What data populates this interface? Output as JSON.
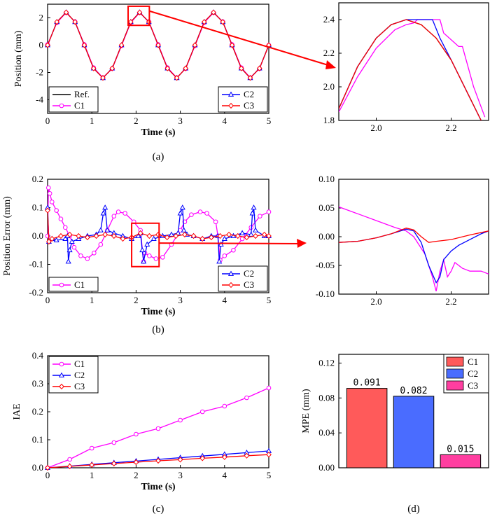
{
  "chart_data": [
    {
      "type": "line",
      "id": "a_main",
      "caption": "(a)",
      "xlabel": "Time (s)",
      "ylabel": "Position (mm)",
      "xlim": [
        0,
        5
      ],
      "ylim": [
        -5,
        3
      ],
      "xticks": [
        0,
        1,
        2,
        3,
        4,
        5
      ],
      "yticks": [
        -4,
        -2,
        0,
        2
      ],
      "legend": {
        "left": [
          "Ref.",
          "C1"
        ],
        "right": [
          "C2",
          "C3"
        ]
      },
      "legend_placement": "bottom-left and bottom-right",
      "series": [
        {
          "name": "Ref.",
          "color": "#000000",
          "marker": "none",
          "x": [
            0,
            0.21,
            0.42,
            0.62,
            0.83,
            1.04,
            1.25,
            1.46,
            1.67,
            1.88,
            2.08,
            2.29,
            2.5,
            2.71,
            2.92,
            3.12,
            3.33,
            3.54,
            3.75,
            3.96,
            4.17,
            4.38,
            4.58,
            4.79,
            5.0
          ],
          "y": [
            0,
            1.7,
            2.4,
            1.7,
            0,
            -1.7,
            -2.4,
            -1.7,
            0,
            1.7,
            2.4,
            1.7,
            0,
            -1.7,
            -2.4,
            -1.7,
            0,
            1.7,
            2.4,
            1.7,
            0,
            -1.7,
            -2.4,
            -1.7,
            0
          ]
        },
        {
          "name": "C1",
          "color": "#ff00ff",
          "marker": "circle",
          "x": [
            0,
            0.21,
            0.42,
            0.62,
            0.83,
            1.04,
            1.25,
            1.46,
            1.67,
            1.88,
            2.08,
            2.29,
            2.5,
            2.71,
            2.92,
            3.12,
            3.33,
            3.54,
            3.75,
            3.96,
            4.17,
            4.38,
            4.58,
            4.79,
            5.0
          ],
          "y": [
            0.05,
            1.65,
            2.38,
            1.72,
            0.05,
            -1.65,
            -2.38,
            -1.72,
            -0.05,
            1.65,
            2.38,
            1.72,
            0.05,
            -1.65,
            -2.38,
            -1.72,
            -0.05,
            1.65,
            2.38,
            1.72,
            0.05,
            -1.65,
            -2.38,
            -1.72,
            0
          ]
        },
        {
          "name": "C2",
          "color": "#0000ff",
          "marker": "triangle",
          "x": [
            0,
            0.21,
            0.42,
            0.62,
            0.83,
            1.04,
            1.25,
            1.46,
            1.67,
            1.88,
            2.08,
            2.29,
            2.5,
            2.71,
            2.92,
            3.12,
            3.33,
            3.54,
            3.75,
            3.96,
            4.17,
            4.38,
            4.58,
            4.79,
            5.0
          ],
          "y": [
            0,
            1.7,
            2.4,
            1.7,
            0,
            -1.7,
            -2.4,
            -1.7,
            0,
            1.7,
            2.4,
            1.7,
            0,
            -1.7,
            -2.4,
            -1.7,
            0,
            1.7,
            2.4,
            1.7,
            0,
            -1.7,
            -2.4,
            -1.7,
            0
          ]
        },
        {
          "name": "C3",
          "color": "#ff0000",
          "marker": "diamond",
          "x": [
            0,
            0.21,
            0.42,
            0.62,
            0.83,
            1.04,
            1.25,
            1.46,
            1.67,
            1.88,
            2.08,
            2.29,
            2.5,
            2.71,
            2.92,
            3.12,
            3.33,
            3.54,
            3.75,
            3.96,
            4.17,
            4.38,
            4.58,
            4.79,
            5.0
          ],
          "y": [
            0,
            1.7,
            2.4,
            1.7,
            0,
            -1.7,
            -2.4,
            -1.7,
            0,
            1.7,
            2.4,
            1.7,
            0,
            -1.7,
            -2.4,
            -1.7,
            0,
            1.7,
            2.4,
            1.7,
            0,
            -1.7,
            -2.4,
            -1.7,
            0
          ]
        }
      ]
    },
    {
      "type": "line",
      "id": "a_zoom",
      "xlim": [
        1.9,
        2.3
      ],
      "ylim": [
        1.8,
        2.5
      ],
      "xticks": [
        2.0,
        2.2
      ],
      "xtick_labels": [
        "2.0",
        "2.2"
      ],
      "yticks": [
        1.8,
        2.0,
        2.2,
        2.4
      ],
      "ytick_labels": [
        "1.8",
        "2.0",
        "2.2",
        "2.4"
      ],
      "series": [
        {
          "name": "Ref.",
          "color": "#000000",
          "x": [
            1.9,
            1.95,
            2.0,
            2.04,
            2.08,
            2.12,
            2.16,
            2.2,
            2.24,
            2.28
          ],
          "y": [
            1.87,
            2.12,
            2.29,
            2.37,
            2.4,
            2.37,
            2.29,
            2.16,
            1.98,
            1.8
          ]
        },
        {
          "name": "C1",
          "color": "#ff00ff",
          "x": [
            1.9,
            1.95,
            2.0,
            2.05,
            2.08,
            2.1,
            2.11,
            2.17,
            2.18,
            2.22,
            2.23,
            2.26,
            2.29
          ],
          "y": [
            1.85,
            2.06,
            2.23,
            2.34,
            2.37,
            2.38,
            2.4,
            2.4,
            2.32,
            2.24,
            2.24,
            2.0,
            1.82
          ]
        },
        {
          "name": "C2",
          "color": "#0000ff",
          "x": [
            1.9,
            1.95,
            2.0,
            2.04,
            2.08,
            2.1,
            2.15,
            2.17,
            2.2,
            2.24,
            2.28
          ],
          "y": [
            1.87,
            2.12,
            2.29,
            2.37,
            2.4,
            2.4,
            2.4,
            2.29,
            2.16,
            1.98,
            1.8
          ]
        },
        {
          "name": "C3",
          "color": "#ff0000",
          "x": [
            1.9,
            1.95,
            2.0,
            2.04,
            2.08,
            2.12,
            2.16,
            2.2,
            2.24,
            2.28
          ],
          "y": [
            1.87,
            2.12,
            2.29,
            2.37,
            2.4,
            2.37,
            2.29,
            2.16,
            1.98,
            1.8
          ]
        }
      ]
    },
    {
      "type": "line",
      "id": "b_main",
      "caption": "(b)",
      "xlabel": "Time (s)",
      "ylabel": "Position Error (mm)",
      "xlim": [
        0,
        5
      ],
      "ylim": [
        -0.2,
        0.2
      ],
      "xticks": [
        0,
        1,
        2,
        3,
        4,
        5
      ],
      "yticks": [
        -0.2,
        -0.1,
        0.0,
        0.1,
        0.2
      ],
      "ytick_labels": [
        "-0.2",
        "-0.1",
        "0.0",
        "0.1",
        "0.2"
      ],
      "legend": {
        "left": [
          "C1"
        ],
        "right": [
          "C2",
          "C3"
        ]
      },
      "legend_placement": "bottom-left and bottom-right",
      "series": [
        {
          "name": "C1",
          "color": "#ff00ff",
          "marker": "circle",
          "x": [
            0,
            0.02,
            0.05,
            0.1,
            0.2,
            0.3,
            0.4,
            0.5,
            0.6,
            0.75,
            0.9,
            1.05,
            1.2,
            1.35,
            1.5,
            1.6,
            1.75,
            1.95,
            2.1,
            2.17,
            2.2,
            2.3,
            2.45,
            2.6,
            2.8,
            3.0,
            3.1,
            3.25,
            3.45,
            3.6,
            3.8,
            3.85,
            3.9,
            4.0,
            4.2,
            4.4,
            4.6,
            4.8,
            5.0
          ],
          "y": [
            0.0,
            0.17,
            0.15,
            0.12,
            0.09,
            0.06,
            0.03,
            0.0,
            -0.04,
            -0.07,
            -0.08,
            -0.06,
            -0.03,
            0.02,
            0.07,
            0.085,
            0.08,
            0.05,
            0.02,
            -0.09,
            -0.06,
            -0.07,
            -0.08,
            -0.075,
            -0.03,
            0.02,
            0.05,
            0.075,
            0.085,
            0.08,
            0.05,
            0.0,
            -0.085,
            -0.07,
            -0.05,
            -0.01,
            0.03,
            0.07,
            0.085
          ]
        },
        {
          "name": "C2",
          "color": "#0000ff",
          "marker": "triangle",
          "x": [
            0,
            0.03,
            0.1,
            0.2,
            0.4,
            0.45,
            0.47,
            0.5,
            0.55,
            0.7,
            0.9,
            1.1,
            1.2,
            1.26,
            1.3,
            1.35,
            1.5,
            1.7,
            1.9,
            2.05,
            2.1,
            2.14,
            2.17,
            2.25,
            2.4,
            2.6,
            2.8,
            2.95,
            3.0,
            3.05,
            3.08,
            3.15,
            3.3,
            3.5,
            3.7,
            3.85,
            3.88,
            3.92,
            4.0,
            4.2,
            4.4,
            4.6,
            4.63,
            4.66,
            4.7,
            4.9,
            5.0
          ],
          "y": [
            0.1,
            -0.02,
            -0.01,
            -0.015,
            -0.01,
            0.0,
            -0.09,
            -0.05,
            -0.02,
            -0.01,
            0.0,
            0.005,
            0.02,
            0.08,
            0.1,
            0.02,
            0.01,
            0.0,
            -0.01,
            0.0,
            0.01,
            -0.05,
            -0.09,
            -0.03,
            -0.01,
            0.0,
            0.005,
            0.01,
            0.08,
            0.1,
            0.02,
            0.005,
            0.0,
            -0.01,
            0.0,
            0.0,
            -0.09,
            -0.03,
            -0.01,
            0.0,
            0.01,
            0.005,
            0.08,
            0.1,
            0.02,
            0.0,
            0.0
          ]
        },
        {
          "name": "C3",
          "color": "#ff0000",
          "marker": "diamond",
          "x": [
            0,
            0.03,
            0.1,
            0.3,
            0.5,
            0.7,
            0.9,
            1.1,
            1.3,
            1.5,
            1.7,
            1.9,
            2.1,
            2.3,
            2.5,
            2.7,
            2.9,
            3.1,
            3.3,
            3.5,
            3.7,
            3.9,
            4.1,
            4.3,
            4.5,
            4.7,
            4.9,
            5.0
          ],
          "y": [
            0.09,
            -0.02,
            -0.01,
            0.0,
            0.005,
            0.0,
            -0.005,
            0.0,
            0.005,
            0.0,
            -0.01,
            -0.005,
            0.01,
            0.0,
            0.005,
            -0.005,
            0.0,
            0.005,
            0.0,
            -0.01,
            -0.005,
            0.0,
            0.005,
            0.0,
            -0.005,
            0.0,
            0.005,
            0.0
          ]
        }
      ]
    },
    {
      "type": "line",
      "id": "b_zoom",
      "xlim": [
        1.9,
        2.3
      ],
      "ylim": [
        -0.1,
        0.1
      ],
      "xticks": [
        2.0,
        2.2
      ],
      "xtick_labels": [
        "2.0",
        "2.2"
      ],
      "yticks": [
        -0.1,
        -0.05,
        0.0,
        0.05,
        0.1
      ],
      "ytick_labels": [
        "-0.10",
        "-0.05",
        "0.00",
        "0.05",
        "0.10"
      ],
      "series": [
        {
          "name": "C1",
          "color": "#ff00ff",
          "x": [
            1.9,
            1.95,
            2.0,
            2.05,
            2.08,
            2.1,
            2.13,
            2.15,
            2.16,
            2.17,
            2.18,
            2.19,
            2.2,
            2.21,
            2.23,
            2.25,
            2.28,
            2.3
          ],
          "y": [
            0.052,
            0.04,
            0.028,
            0.016,
            0.01,
            0.0,
            -0.03,
            -0.07,
            -0.095,
            -0.06,
            -0.04,
            -0.07,
            -0.06,
            -0.045,
            -0.055,
            -0.06,
            -0.06,
            -0.065
          ]
        },
        {
          "name": "C2",
          "color": "#0000ff",
          "x": [
            1.9,
            1.95,
            2.0,
            2.04,
            2.08,
            2.1,
            2.12,
            2.14,
            2.16,
            2.17,
            2.18,
            2.2,
            2.22,
            2.25,
            2.28,
            2.3
          ],
          "y": [
            -0.01,
            -0.008,
            -0.002,
            0.005,
            0.013,
            0.01,
            -0.01,
            -0.05,
            -0.08,
            -0.07,
            -0.04,
            -0.025,
            -0.015,
            -0.005,
            0.005,
            0.01
          ]
        },
        {
          "name": "C3",
          "color": "#ff0000",
          "x": [
            1.9,
            1.95,
            2.0,
            2.04,
            2.08,
            2.1,
            2.12,
            2.14,
            2.16,
            2.2,
            2.25,
            2.3
          ],
          "y": [
            -0.01,
            -0.008,
            -0.002,
            0.005,
            0.015,
            0.012,
            0.0,
            -0.01,
            -0.008,
            -0.005,
            0.003,
            0.01
          ]
        }
      ]
    },
    {
      "type": "line",
      "id": "c_main",
      "caption": "(c)",
      "xlabel": "Time (s)",
      "ylabel": "IAE",
      "xlim": [
        0,
        5
      ],
      "ylim": [
        0,
        0.4
      ],
      "xticks": [
        0,
        1,
        2,
        3,
        4,
        5
      ],
      "yticks": [
        0,
        0.1,
        0.2,
        0.3,
        0.4
      ],
      "ytick_labels": [
        "0.0",
        "0.1",
        "0.2",
        "0.3",
        "0.4"
      ],
      "legend": {
        "left": [
          "C1",
          "C2",
          "C3"
        ]
      },
      "legend_placement": "top-left",
      "series": [
        {
          "name": "C1",
          "color": "#ff00ff",
          "marker": "circle",
          "x": [
            0,
            0.5,
            1.0,
            1.5,
            2.0,
            2.5,
            3.0,
            3.5,
            4.0,
            4.5,
            5.0
          ],
          "y": [
            0,
            0.03,
            0.07,
            0.09,
            0.12,
            0.14,
            0.17,
            0.2,
            0.22,
            0.25,
            0.285
          ]
        },
        {
          "name": "C2",
          "color": "#0000ff",
          "marker": "triangle",
          "x": [
            0,
            0.5,
            1.0,
            1.5,
            2.0,
            2.5,
            3.0,
            3.5,
            4.0,
            4.5,
            5.0
          ],
          "y": [
            0,
            0.006,
            0.012,
            0.018,
            0.024,
            0.03,
            0.036,
            0.042,
            0.048,
            0.054,
            0.06
          ]
        },
        {
          "name": "C3",
          "color": "#ff0000",
          "marker": "diamond",
          "x": [
            0,
            0.5,
            1.0,
            1.5,
            2.0,
            2.5,
            3.0,
            3.5,
            4.0,
            4.5,
            5.0
          ],
          "y": [
            0,
            0.005,
            0.01,
            0.015,
            0.02,
            0.025,
            0.029,
            0.034,
            0.038,
            0.043,
            0.047
          ]
        }
      ]
    },
    {
      "type": "bar",
      "id": "d_main",
      "caption": "(d)",
      "ylabel": "MPE (mm)",
      "ylim": [
        0,
        0.13
      ],
      "yticks": [
        0,
        0.04,
        0.08,
        0.12
      ],
      "ytick_labels": [
        "0.00",
        "0.04",
        "0.08",
        "0.12"
      ],
      "categories": [
        "C1",
        "C2",
        "C3"
      ],
      "values": [
        0.091,
        0.082,
        0.015
      ],
      "data_labels": [
        "0.091",
        "0.082",
        "0.015"
      ],
      "colors": [
        "#ff5a5a",
        "#4a6cff",
        "#ff3ea0"
      ],
      "legend": [
        "C1",
        "C2",
        "C3"
      ],
      "legend_placement": "top-right"
    }
  ]
}
